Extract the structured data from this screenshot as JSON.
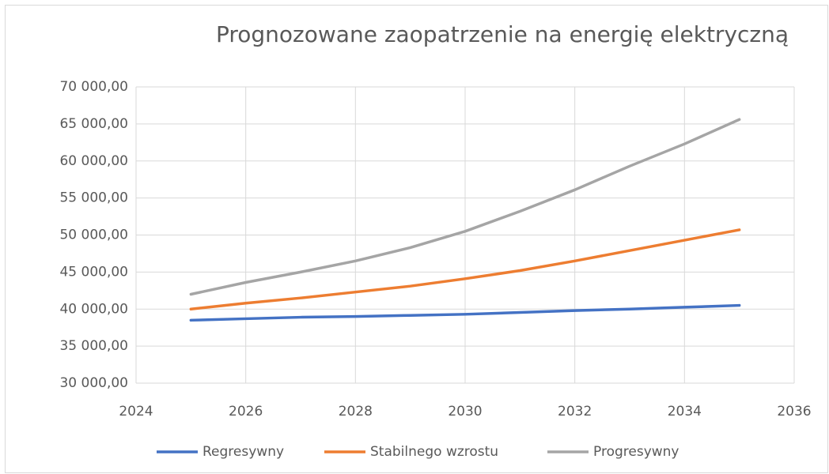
{
  "chart_data": {
    "type": "line",
    "title": "Prognozowane zaopatrzenie na energię elektryczną",
    "x": [
      2025,
      2026,
      2027,
      2028,
      2029,
      2030,
      2031,
      2032,
      2033,
      2034,
      2035
    ],
    "series": [
      {
        "name": "Regresywny",
        "color": "#4472c4",
        "values": [
          38500,
          38700,
          38900,
          39000,
          39150,
          39300,
          39550,
          39800,
          40000,
          40250,
          40500
        ]
      },
      {
        "name": "Stabilnego wzrostu",
        "color": "#ed7d31",
        "values": [
          40000,
          40800,
          41500,
          42300,
          43100,
          44100,
          45200,
          46500,
          47900,
          49300,
          50700
        ]
      },
      {
        "name": "Progresywny",
        "color": "#a5a5a5",
        "values": [
          42000,
          43600,
          45000,
          46500,
          48300,
          50500,
          53200,
          56100,
          59300,
          62300,
          65600
        ]
      }
    ],
    "xlim": [
      2024,
      2036
    ],
    "xticks": [
      2024,
      2026,
      2028,
      2030,
      2032,
      2034,
      2036
    ],
    "ylim": [
      30000,
      70000
    ],
    "yticks": [
      {
        "value": 30000,
        "label": "30 000,00"
      },
      {
        "value": 35000,
        "label": "35 000,00"
      },
      {
        "value": 40000,
        "label": "40 000,00"
      },
      {
        "value": 45000,
        "label": "45 000,00"
      },
      {
        "value": 50000,
        "label": "50 000,00"
      },
      {
        "value": 55000,
        "label": "55 000,00"
      },
      {
        "value": 60000,
        "label": "60 000,00"
      },
      {
        "value": 65000,
        "label": "65 000,00"
      },
      {
        "value": 70000,
        "label": "70 000,00"
      }
    ],
    "grid": true,
    "legend": "bottom"
  }
}
